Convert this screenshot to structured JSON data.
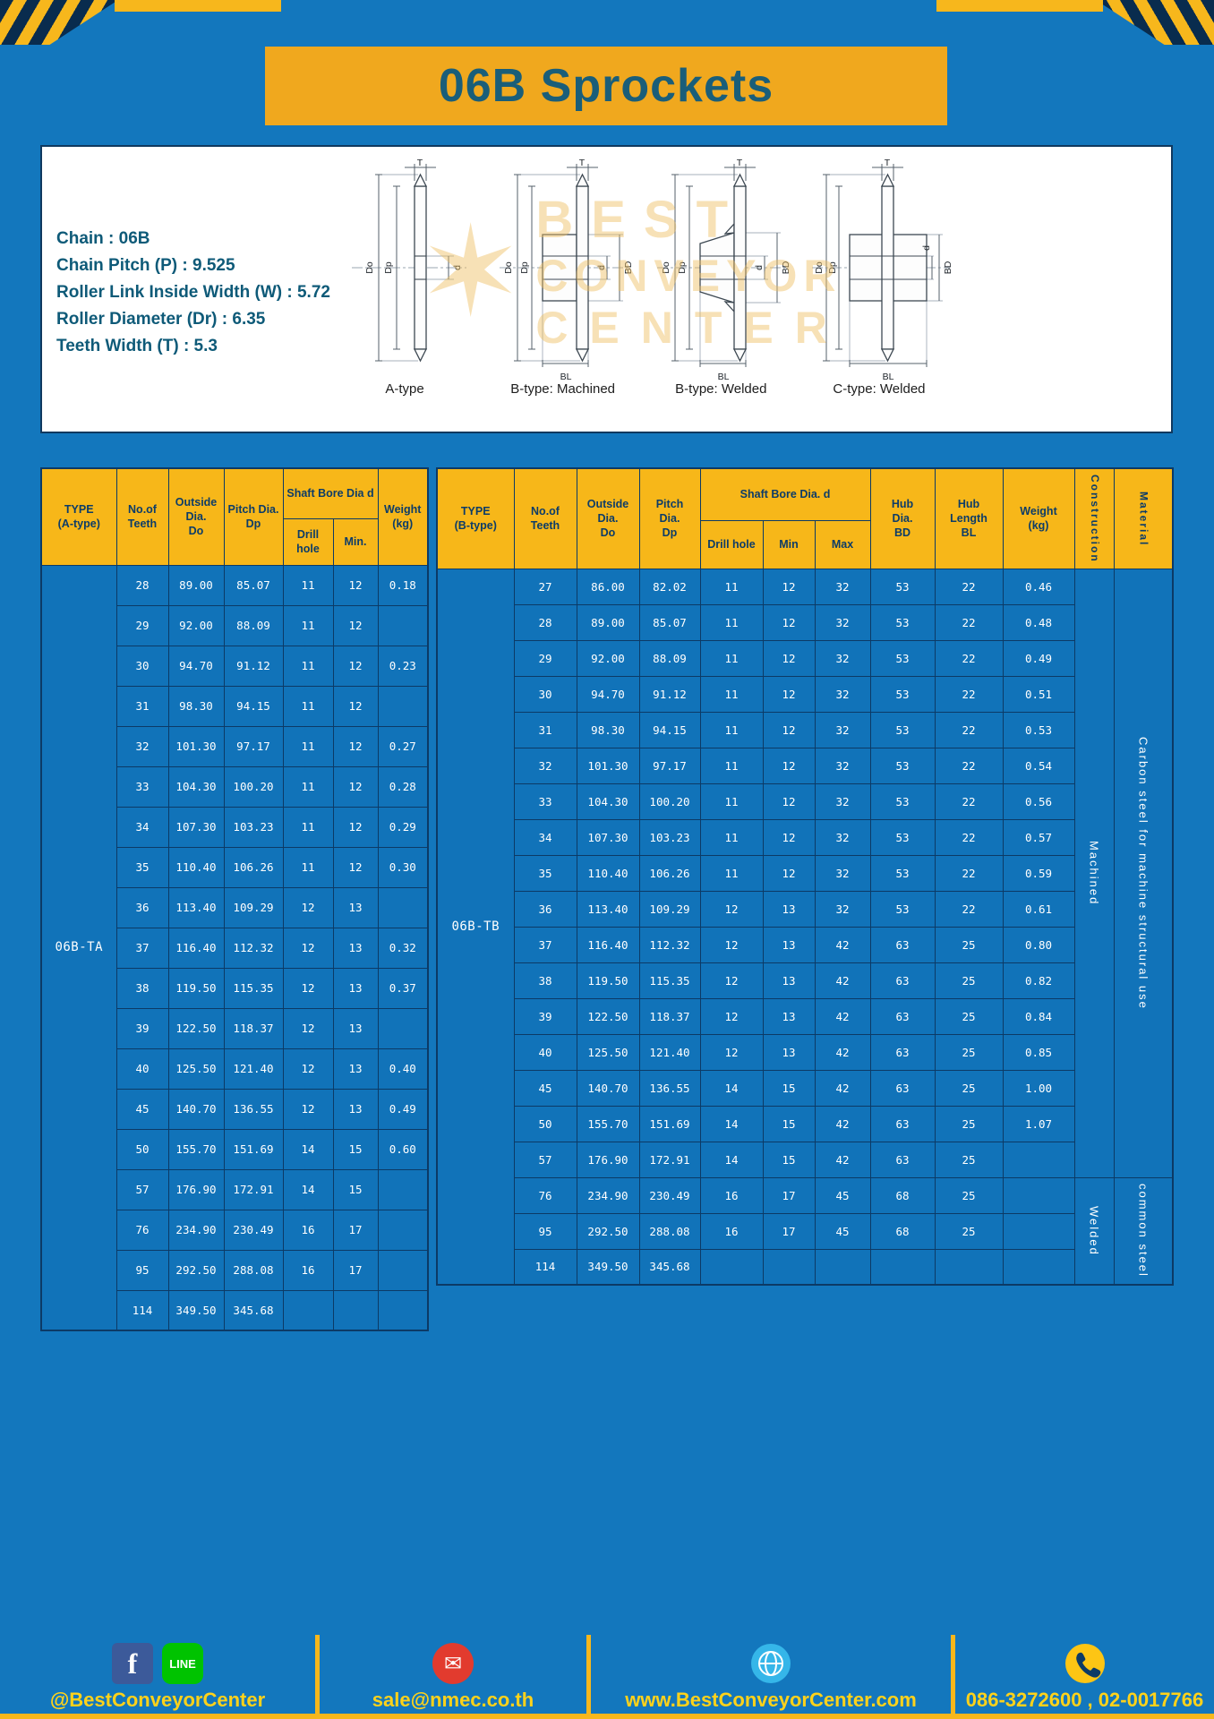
{
  "title": "06B Sprockets",
  "specs": [
    "Chain : 06B",
    "Chain Pitch (P) : 9.525",
    "Roller Link Inside Width (W) : 5.72",
    "Roller Diameter (Dr) : 6.35",
    "Teeth Width (T) : 5.3"
  ],
  "watermark": {
    "star": "✶",
    "line1": "BEST",
    "line2": "CONVEYOR",
    "line3": "CENTER"
  },
  "dims": {
    "t": "T",
    "do": "Do",
    "dp": "Dp",
    "d": "d",
    "bd": "BD",
    "bl": "BL"
  },
  "figures": [
    "A-type",
    "B-type: Machined",
    "B-type: Welded",
    "C-type: Welded"
  ],
  "tables": {
    "left": {
      "header": {
        "type": "TYPE\n(A-type)",
        "teeth": "No.of\nTeeth",
        "outside": "Outside\nDia.\nDo",
        "pitch": "Pitch Dia.\nDp",
        "bore_group": "Shaft Bore Dia d",
        "drill": "Drill hole",
        "min": "Min.",
        "weight": "Weight\n(kg)"
      },
      "type_value": "06B-TA",
      "rows": [
        [
          "28",
          "89.00",
          "85.07",
          "11",
          "12",
          "0.18"
        ],
        [
          "29",
          "92.00",
          "88.09",
          "11",
          "12",
          ""
        ],
        [
          "30",
          "94.70",
          "91.12",
          "11",
          "12",
          "0.23"
        ],
        [
          "31",
          "98.30",
          "94.15",
          "11",
          "12",
          ""
        ],
        [
          "32",
          "101.30",
          "97.17",
          "11",
          "12",
          "0.27"
        ],
        [
          "33",
          "104.30",
          "100.20",
          "11",
          "12",
          "0.28"
        ],
        [
          "34",
          "107.30",
          "103.23",
          "11",
          "12",
          "0.29"
        ],
        [
          "35",
          "110.40",
          "106.26",
          "11",
          "12",
          "0.30"
        ],
        [
          "36",
          "113.40",
          "109.29",
          "12",
          "13",
          ""
        ],
        [
          "37",
          "116.40",
          "112.32",
          "12",
          "13",
          "0.32"
        ],
        [
          "38",
          "119.50",
          "115.35",
          "12",
          "13",
          "0.37"
        ],
        [
          "39",
          "122.50",
          "118.37",
          "12",
          "13",
          ""
        ],
        [
          "40",
          "125.50",
          "121.40",
          "12",
          "13",
          "0.40"
        ],
        [
          "45",
          "140.70",
          "136.55",
          "12",
          "13",
          "0.49"
        ],
        [
          "50",
          "155.70",
          "151.69",
          "14",
          "15",
          "0.60"
        ],
        [
          "57",
          "176.90",
          "172.91",
          "14",
          "15",
          ""
        ],
        [
          "76",
          "234.90",
          "230.49",
          "16",
          "17",
          ""
        ],
        [
          "95",
          "292.50",
          "288.08",
          "16",
          "17",
          ""
        ],
        [
          "114",
          "349.50",
          "345.68",
          "",
          "",
          ""
        ]
      ]
    },
    "right": {
      "header": {
        "type": "TYPE\n(B-type)",
        "teeth": "No.of\nTeeth",
        "outside": "Outside\nDia.\nDo",
        "pitch": "Pitch\nDia.\nDp",
        "bore_group": "Shaft Bore Dia. d",
        "drill": "Drill hole",
        "min": "Min",
        "max": "Max",
        "hub_dia": "Hub\nDia.\nBD",
        "hub_len": "Hub\nLength\nBL",
        "weight": "Weight\n(kg)",
        "construction": "Construction",
        "material": "Material"
      },
      "type_value": "06B-TB",
      "construction_groups": [
        {
          "label": "Machined",
          "rows": 17
        },
        {
          "label": "Welded",
          "rows": 3
        }
      ],
      "material_groups": [
        {
          "label": "Carbon steel for machine structural use",
          "rows": 17
        },
        {
          "label": "common steel",
          "rows": 3
        }
      ],
      "rows": [
        [
          "27",
          "86.00",
          "82.02",
          "11",
          "12",
          "32",
          "53",
          "22",
          "0.46"
        ],
        [
          "28",
          "89.00",
          "85.07",
          "11",
          "12",
          "32",
          "53",
          "22",
          "0.48"
        ],
        [
          "29",
          "92.00",
          "88.09",
          "11",
          "12",
          "32",
          "53",
          "22",
          "0.49"
        ],
        [
          "30",
          "94.70",
          "91.12",
          "11",
          "12",
          "32",
          "53",
          "22",
          "0.51"
        ],
        [
          "31",
          "98.30",
          "94.15",
          "11",
          "12",
          "32",
          "53",
          "22",
          "0.53"
        ],
        [
          "32",
          "101.30",
          "97.17",
          "11",
          "12",
          "32",
          "53",
          "22",
          "0.54"
        ],
        [
          "33",
          "104.30",
          "100.20",
          "11",
          "12",
          "32",
          "53",
          "22",
          "0.56"
        ],
        [
          "34",
          "107.30",
          "103.23",
          "11",
          "12",
          "32",
          "53",
          "22",
          "0.57"
        ],
        [
          "35",
          "110.40",
          "106.26",
          "11",
          "12",
          "32",
          "53",
          "22",
          "0.59"
        ],
        [
          "36",
          "113.40",
          "109.29",
          "12",
          "13",
          "32",
          "53",
          "22",
          "0.61"
        ],
        [
          "37",
          "116.40",
          "112.32",
          "12",
          "13",
          "42",
          "63",
          "25",
          "0.80"
        ],
        [
          "38",
          "119.50",
          "115.35",
          "12",
          "13",
          "42",
          "63",
          "25",
          "0.82"
        ],
        [
          "39",
          "122.50",
          "118.37",
          "12",
          "13",
          "42",
          "63",
          "25",
          "0.84"
        ],
        [
          "40",
          "125.50",
          "121.40",
          "12",
          "13",
          "42",
          "63",
          "25",
          "0.85"
        ],
        [
          "45",
          "140.70",
          "136.55",
          "14",
          "15",
          "42",
          "63",
          "25",
          "1.00"
        ],
        [
          "50",
          "155.70",
          "151.69",
          "14",
          "15",
          "42",
          "63",
          "25",
          "1.07"
        ],
        [
          "57",
          "176.90",
          "172.91",
          "14",
          "15",
          "42",
          "63",
          "25",
          ""
        ],
        [
          "76",
          "234.90",
          "230.49",
          "16",
          "17",
          "45",
          "68",
          "25",
          ""
        ],
        [
          "95",
          "292.50",
          "288.08",
          "16",
          "17",
          "45",
          "68",
          "25",
          ""
        ],
        [
          "114",
          "349.50",
          "345.68",
          "",
          "",
          "",
          "",
          "",
          ""
        ]
      ]
    }
  },
  "footer": {
    "facebook_glyph": "f",
    "line_label": "LINE",
    "mail_glyph": "✉",
    "items": [
      {
        "icons": [
          "facebook-icon",
          "line-icon"
        ],
        "text": "@BestConveyorCenter"
      },
      {
        "icons": [
          "email-icon"
        ],
        "text": "sale@nmec.co.th"
      },
      {
        "icons": [
          "globe-icon"
        ],
        "text": "www.BestConveyorCenter.com"
      },
      {
        "icons": [
          "phone-icon"
        ],
        "text": "086-3272600 , 02-0017766"
      }
    ]
  },
  "colors": {
    "background": "#1377bd",
    "accent_yellow": "#f7b71c",
    "banner_yellow": "#f0a81e",
    "header_yellow": "#f7b719",
    "navy_border": "#0c3a66",
    "title_text": "#1a5e79",
    "footer_text": "#ffd21a"
  }
}
